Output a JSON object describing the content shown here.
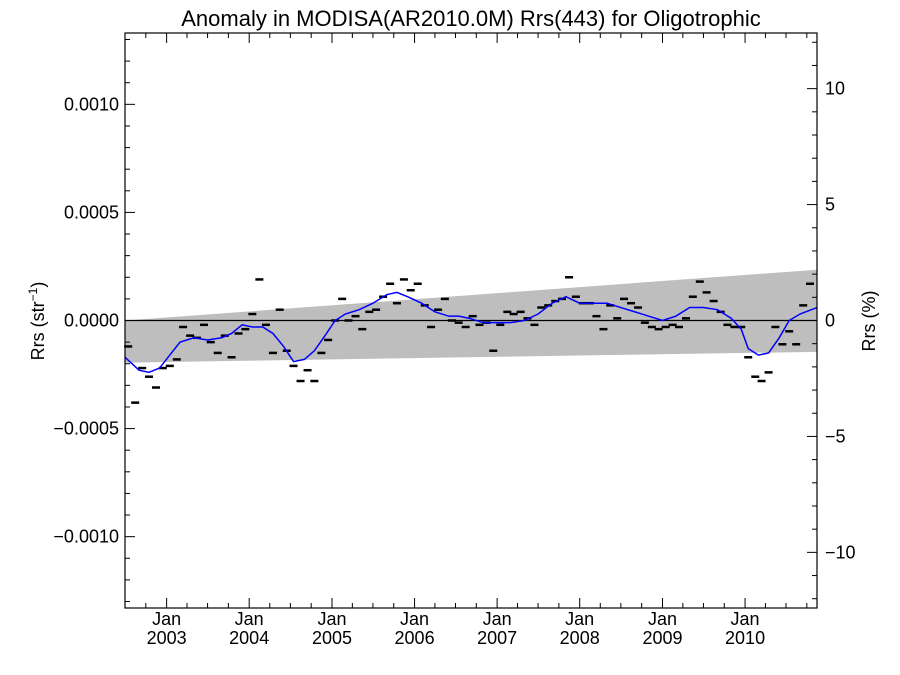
{
  "chart_data": {
    "type": "line",
    "title": "Anomaly in MODISA(AR2010.0M) Rrs(443) for Oligotrophic",
    "ylabel_left": {
      "base": "Rrs (str",
      "sup": "−1",
      "close": ")"
    },
    "ylabel_right": "Rrs (%)",
    "xlim": [
      "2002-07-01",
      "2010-11-15"
    ],
    "ylim": [
      -0.00133,
      0.00133
    ],
    "y2lim": [
      -12.4,
      12.4
    ],
    "y_ticks": [
      {
        "value": 0.001,
        "label": "0.0010"
      },
      {
        "value": 0.0005,
        "label": "0.0005"
      },
      {
        "value": 0.0,
        "label": "0.0000"
      },
      {
        "value": -0.0005,
        "label": "−0.0005"
      },
      {
        "value": -0.001,
        "label": "−0.0010"
      }
    ],
    "y2_ticks": [
      {
        "value": 10,
        "label": "10"
      },
      {
        "value": 5,
        "label": "5"
      },
      {
        "value": 0,
        "label": "0"
      },
      {
        "value": -5,
        "label": "−5"
      },
      {
        "value": -10,
        "label": "−10"
      }
    ],
    "x_ticks": [
      {
        "date": "2003-01-01",
        "month": "Jan",
        "year": "2003"
      },
      {
        "date": "2004-01-01",
        "month": "Jan",
        "year": "2004"
      },
      {
        "date": "2005-01-01",
        "month": "Jan",
        "year": "2005"
      },
      {
        "date": "2006-01-01",
        "month": "Jan",
        "year": "2006"
      },
      {
        "date": "2007-01-01",
        "month": "Jan",
        "year": "2007"
      },
      {
        "date": "2008-01-01",
        "month": "Jan",
        "year": "2008"
      },
      {
        "date": "2009-01-01",
        "month": "Jan",
        "year": "2009"
      },
      {
        "date": "2010-01-01",
        "month": "Jan",
        "year": "2010"
      }
    ],
    "uncertainty_band": {
      "color": "#bebebe",
      "upper": [
        [
          "2002-07-01",
          0.0
        ],
        [
          "2010-11-15",
          0.000235
        ]
      ],
      "lower": [
        [
          "2002-07-01",
          -0.000195
        ],
        [
          "2010-11-15",
          -0.000145
        ]
      ]
    },
    "monthly_anomaly": {
      "marker": "dash",
      "color": "#000000",
      "points": [
        [
          "2002-07-15",
          -0.00012
        ],
        [
          "2002-08-15",
          -0.00038
        ],
        [
          "2002-09-15",
          -0.00022
        ],
        [
          "2002-10-15",
          -0.00026
        ],
        [
          "2002-11-15",
          -0.00031
        ],
        [
          "2002-12-15",
          -0.00022
        ],
        [
          "2003-01-15",
          -0.00021
        ],
        [
          "2003-02-15",
          -0.00018
        ],
        [
          "2003-03-15",
          -3e-05
        ],
        [
          "2003-04-15",
          -7e-05
        ],
        [
          "2003-05-15",
          -8e-05
        ],
        [
          "2003-06-15",
          -2e-05
        ],
        [
          "2003-07-15",
          -0.0001
        ],
        [
          "2003-08-15",
          -0.00015
        ],
        [
          "2003-09-15",
          -7e-05
        ],
        [
          "2003-10-15",
          -0.00017
        ],
        [
          "2003-11-15",
          -6e-05
        ],
        [
          "2003-12-15",
          -4e-05
        ],
        [
          "2004-01-15",
          3e-05
        ],
        [
          "2004-02-15",
          0.00019
        ],
        [
          "2004-03-15",
          -2e-05
        ],
        [
          "2004-04-15",
          -0.00015
        ],
        [
          "2004-05-15",
          5e-05
        ],
        [
          "2004-06-15",
          -0.00014
        ],
        [
          "2004-07-15",
          -0.00021
        ],
        [
          "2004-08-15",
          -0.00028
        ],
        [
          "2004-09-15",
          -0.00023
        ],
        [
          "2004-10-15",
          -0.00028
        ],
        [
          "2004-11-15",
          -0.00015
        ],
        [
          "2004-12-15",
          -9e-05
        ],
        [
          "2005-01-15",
          0.0
        ],
        [
          "2005-02-15",
          0.0001
        ],
        [
          "2005-03-15",
          0.0
        ],
        [
          "2005-04-15",
          2e-05
        ],
        [
          "2005-05-15",
          -4e-05
        ],
        [
          "2005-06-15",
          4e-05
        ],
        [
          "2005-07-15",
          5e-05
        ],
        [
          "2005-08-15",
          0.00011
        ],
        [
          "2005-09-15",
          0.00017
        ],
        [
          "2005-10-15",
          8e-05
        ],
        [
          "2005-11-15",
          0.00019
        ],
        [
          "2005-12-15",
          0.00014
        ],
        [
          "2006-01-15",
          0.00017
        ],
        [
          "2006-02-15",
          7e-05
        ],
        [
          "2006-03-15",
          -3e-05
        ],
        [
          "2006-04-15",
          5e-05
        ],
        [
          "2006-05-15",
          0.0001
        ],
        [
          "2006-06-15",
          0.0
        ],
        [
          "2006-07-15",
          -1e-05
        ],
        [
          "2006-08-15",
          -3e-05
        ],
        [
          "2006-09-15",
          2e-05
        ],
        [
          "2006-10-15",
          -2e-05
        ],
        [
          "2006-11-15",
          -1e-05
        ],
        [
          "2006-12-15",
          -0.00014
        ],
        [
          "2007-01-15",
          -2e-05
        ],
        [
          "2007-02-15",
          4e-05
        ],
        [
          "2007-03-15",
          3e-05
        ],
        [
          "2007-04-15",
          4e-05
        ],
        [
          "2007-05-15",
          1e-05
        ],
        [
          "2007-06-15",
          -2e-05
        ],
        [
          "2007-07-15",
          6e-05
        ],
        [
          "2007-08-15",
          7e-05
        ],
        [
          "2007-09-15",
          9e-05
        ],
        [
          "2007-10-15",
          0.0001
        ],
        [
          "2007-11-15",
          0.0002
        ],
        [
          "2007-12-15",
          0.00011
        ],
        [
          "2008-01-15",
          8e-05
        ],
        [
          "2008-02-15",
          8e-05
        ],
        [
          "2008-03-15",
          2e-05
        ],
        [
          "2008-04-15",
          -4e-05
        ],
        [
          "2008-05-15",
          7e-05
        ],
        [
          "2008-06-15",
          1e-05
        ],
        [
          "2008-07-15",
          0.0001
        ],
        [
          "2008-08-15",
          8e-05
        ],
        [
          "2008-09-15",
          6e-05
        ],
        [
          "2008-10-15",
          -1e-05
        ],
        [
          "2008-11-15",
          -3e-05
        ],
        [
          "2008-12-15",
          -4e-05
        ],
        [
          "2009-01-15",
          -3e-05
        ],
        [
          "2009-02-15",
          -2e-05
        ],
        [
          "2009-03-15",
          -3e-05
        ],
        [
          "2009-04-15",
          1e-05
        ],
        [
          "2009-05-15",
          0.00011
        ],
        [
          "2009-06-15",
          0.00018
        ],
        [
          "2009-07-15",
          0.00013
        ],
        [
          "2009-08-15",
          9e-05
        ],
        [
          "2009-09-15",
          4e-05
        ],
        [
          "2009-10-15",
          -2e-05
        ],
        [
          "2009-11-15",
          -3e-05
        ],
        [
          "2009-12-15",
          -3e-05
        ],
        [
          "2010-01-15",
          -0.00017
        ],
        [
          "2010-02-15",
          -0.00026
        ],
        [
          "2010-03-15",
          -0.00028
        ],
        [
          "2010-04-15",
          -0.00024
        ],
        [
          "2010-05-15",
          -3e-05
        ],
        [
          "2010-06-15",
          -0.00011
        ],
        [
          "2010-07-15",
          -5e-05
        ],
        [
          "2010-08-15",
          -0.00011
        ],
        [
          "2010-09-15",
          7e-05
        ],
        [
          "2010-10-15",
          0.00017
        ]
      ]
    },
    "smoothed_anomaly": {
      "color": "#0000ff",
      "points": [
        [
          "2002-07-01",
          -0.00017
        ],
        [
          "2002-09-01",
          -0.00023
        ],
        [
          "2002-10-15",
          -0.00024
        ],
        [
          "2002-12-01",
          -0.00022
        ],
        [
          "2003-01-15",
          -0.00016
        ],
        [
          "2003-03-01",
          -0.0001
        ],
        [
          "2003-05-01",
          -8e-05
        ],
        [
          "2003-07-01",
          -9e-05
        ],
        [
          "2003-09-01",
          -8e-05
        ],
        [
          "2003-10-15",
          -6e-05
        ],
        [
          "2003-12-01",
          -2e-05
        ],
        [
          "2004-01-15",
          -3e-05
        ],
        [
          "2004-03-01",
          -3e-05
        ],
        [
          "2004-04-15",
          -6e-05
        ],
        [
          "2004-06-01",
          -0.00012
        ],
        [
          "2004-07-15",
          -0.00019
        ],
        [
          "2004-09-01",
          -0.00018
        ],
        [
          "2004-10-15",
          -0.00014
        ],
        [
          "2004-12-01",
          -7e-05
        ],
        [
          "2005-01-15",
          0.0
        ],
        [
          "2005-03-01",
          3e-05
        ],
        [
          "2005-05-01",
          5e-05
        ],
        [
          "2005-07-01",
          8e-05
        ],
        [
          "2005-09-01",
          0.00012
        ],
        [
          "2005-10-15",
          0.00013
        ],
        [
          "2005-12-01",
          0.00011
        ],
        [
          "2006-02-01",
          8e-05
        ],
        [
          "2006-04-01",
          4e-05
        ],
        [
          "2006-06-01",
          2e-05
        ],
        [
          "2006-07-15",
          2e-05
        ],
        [
          "2006-09-01",
          1e-05
        ],
        [
          "2006-11-01",
          -1e-05
        ],
        [
          "2007-01-01",
          -1e-05
        ],
        [
          "2007-03-01",
          -1e-05
        ],
        [
          "2007-05-01",
          0.0
        ],
        [
          "2007-07-01",
          3e-05
        ],
        [
          "2007-09-01",
          8e-05
        ],
        [
          "2007-11-01",
          0.00011
        ],
        [
          "2008-01-01",
          8e-05
        ],
        [
          "2008-03-01",
          8e-05
        ],
        [
          "2008-05-01",
          8e-05
        ],
        [
          "2008-07-01",
          6e-05
        ],
        [
          "2008-09-01",
          4e-05
        ],
        [
          "2008-11-01",
          2e-05
        ],
        [
          "2009-01-01",
          0.0
        ],
        [
          "2009-03-01",
          2e-05
        ],
        [
          "2009-05-01",
          6e-05
        ],
        [
          "2009-07-01",
          6e-05
        ],
        [
          "2009-09-01",
          5e-05
        ],
        [
          "2009-11-01",
          1e-05
        ],
        [
          "2009-12-15",
          -4e-05
        ],
        [
          "2010-01-15",
          -0.00013
        ],
        [
          "2010-03-01",
          -0.00016
        ],
        [
          "2010-04-15",
          -0.00015
        ],
        [
          "2010-06-01",
          -8e-05
        ],
        [
          "2010-07-15",
          0.0
        ],
        [
          "2010-09-01",
          3e-05
        ],
        [
          "2010-11-15",
          6e-05
        ]
      ]
    }
  }
}
